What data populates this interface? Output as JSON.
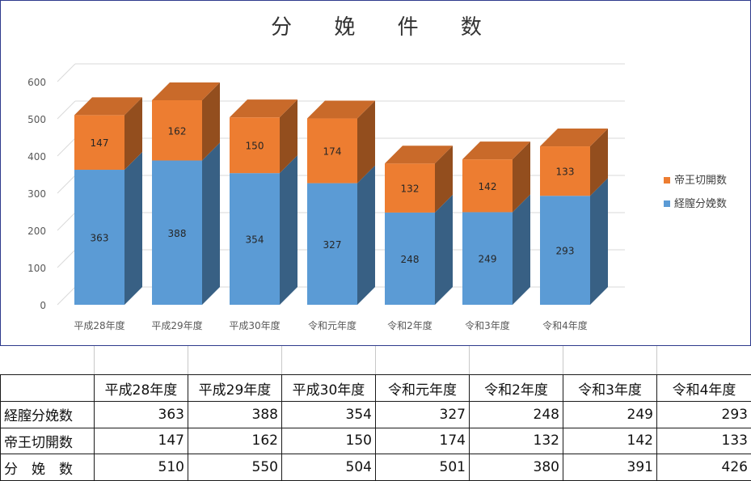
{
  "chart_data": {
    "type": "bar",
    "stacked": true,
    "title": "分 娩 件 数",
    "categories": [
      "平成28年度",
      "平成29年度",
      "平成30年度",
      "令和元年度",
      "令和2年度",
      "令和3年度",
      "令和4年度"
    ],
    "series": [
      {
        "name": "経膣分娩数",
        "values": [
          363,
          388,
          354,
          327,
          248,
          249,
          293
        ],
        "color": "#5b9bd5"
      },
      {
        "name": "帝王切開数",
        "values": [
          147,
          162,
          150,
          174,
          132,
          142,
          133
        ],
        "color": "#ed7d31"
      }
    ],
    "ylim": [
      0,
      600
    ],
    "yticks": [
      0,
      100,
      200,
      300,
      400,
      500,
      600
    ],
    "grid": true,
    "legend": "right"
  },
  "table": {
    "headers": [
      "平成28年度",
      "平成29年度",
      "平成30年度",
      "令和元年度",
      "令和2年度",
      "令和3年度",
      "令和4年度"
    ],
    "rows": [
      {
        "label": "経膣分娩数",
        "values": [
          "363",
          "388",
          "354",
          "327",
          "248",
          "249",
          "293"
        ]
      },
      {
        "label": "帝王切開数",
        "values": [
          "147",
          "162",
          "150",
          "174",
          "132",
          "142",
          "133"
        ]
      },
      {
        "label": "分　娩　数",
        "values": [
          "510",
          "550",
          "504",
          "501",
          "380",
          "391",
          "426"
        ]
      }
    ]
  }
}
